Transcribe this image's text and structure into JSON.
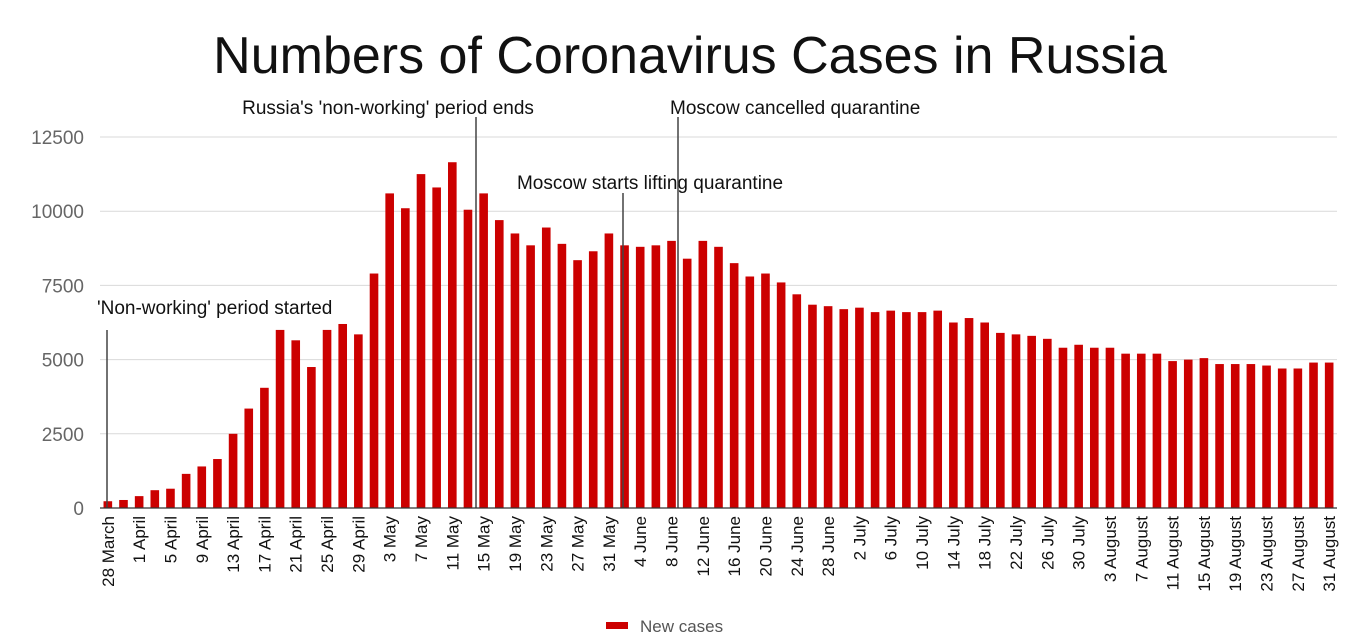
{
  "chart_data": {
    "type": "bar",
    "title": "Numbers of Coronavirus Cases in Russia",
    "xlabel": "",
    "ylabel": "",
    "ylim": [
      0,
      12500
    ],
    "yticks": [
      0,
      2500,
      5000,
      7500,
      10000,
      12500
    ],
    "grid": true,
    "legend_position": "bottom-center",
    "bar_color": "#cc0000",
    "categories": [
      "28 March",
      "30 March",
      "1 April",
      "3 April",
      "5 April",
      "7 April",
      "9 April",
      "11 April",
      "13 April",
      "15 April",
      "17 April",
      "19 April",
      "21 April",
      "23 April",
      "25 April",
      "27 April",
      "29 April",
      "1 May",
      "3 May",
      "5 May",
      "7 May",
      "9 May",
      "11 May",
      "13 May",
      "15 May",
      "17 May",
      "19 May",
      "21 May",
      "23 May",
      "25 May",
      "27 May",
      "29 May",
      "31 May",
      "2 June",
      "4 June",
      "6 June",
      "8 June",
      "10 June",
      "12 June",
      "14 June",
      "16 June",
      "18 June",
      "20 June",
      "22 June",
      "24 June",
      "26 June",
      "28 June",
      "30 June",
      "2 July",
      "4 July",
      "6 July",
      "8 July",
      "10 July",
      "12 July",
      "14 July",
      "16 July",
      "18 July",
      "20 July",
      "22 July",
      "24 July",
      "26 July",
      "28 July",
      "30 July",
      "1 August",
      "3 August",
      "5 August",
      "7 August",
      "9 August",
      "11 August",
      "13 August",
      "15 August",
      "17 August",
      "19 August",
      "21 August",
      "23 August",
      "25 August",
      "27 August",
      "29 August",
      "31 August"
    ],
    "tick_labels": [
      "28 March",
      "1 April",
      "5 April",
      "9 April",
      "13 April",
      "17 April",
      "21 April",
      "25 April",
      "29 April",
      "3 May",
      "7 May",
      "11 May",
      "15 May",
      "19 May",
      "23 May",
      "27 May",
      "31 May",
      "4 June",
      "8 June",
      "12 June",
      "16 June",
      "20 June",
      "24 June",
      "28 June",
      "2 July",
      "6 July",
      "10 July",
      "14 July",
      "18 July",
      "22 July",
      "26 July",
      "30 July",
      "3 August",
      "7 August",
      "11 August",
      "15 August",
      "19 August",
      "23 August",
      "27 August",
      "31 August"
    ],
    "series": [
      {
        "name": "New cases",
        "values": [
          228,
          270,
          400,
          600,
          650,
          1150,
          1400,
          1650,
          2500,
          3350,
          4050,
          6000,
          5650,
          4750,
          6000,
          6200,
          5850,
          7900,
          10600,
          10100,
          11250,
          10800,
          11650,
          10050,
          10600,
          9700,
          9250,
          8850,
          9450,
          8900,
          8350,
          8650,
          9250,
          8850,
          8800,
          8850,
          9000,
          8400,
          9000,
          8800,
          8250,
          7800,
          7900,
          7600,
          7200,
          6850,
          6800,
          6700,
          6750,
          6600,
          6650,
          6600,
          6600,
          6650,
          6250,
          6400,
          6250,
          5900,
          5850,
          5800,
          5700,
          5400,
          5500,
          5400,
          5400,
          5200,
          5200,
          5200,
          4950,
          5000,
          5050,
          4850,
          4850,
          4850,
          4800,
          4700,
          4700,
          4900,
          4900
        ]
      }
    ],
    "annotations": [
      {
        "text": "'Non-working' period started",
        "category": "28 March"
      },
      {
        "text": "Russia's 'non-working' period ends",
        "category": "13 May"
      },
      {
        "text": "Moscow starts lifting quarantine",
        "category": "2 June"
      },
      {
        "text": "Moscow cancelled quarantine",
        "category": "9 June"
      }
    ]
  }
}
